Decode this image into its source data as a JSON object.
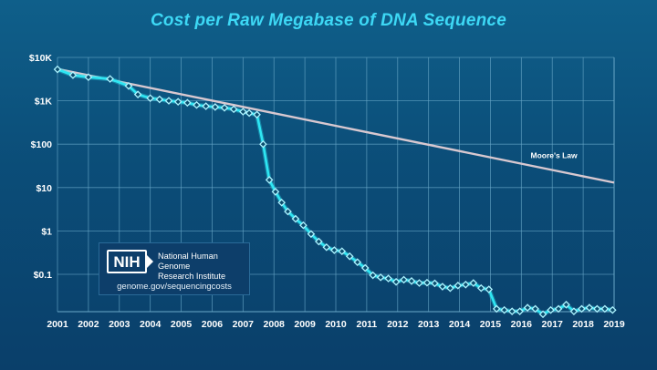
{
  "colors": {
    "title": "#3dd8f5",
    "line": "#2ee6f3",
    "moore": "#d8c8d0",
    "grid": "#6aa8c8",
    "text": "#ffffff"
  },
  "chart_data": {
    "type": "line",
    "title": "Cost per Raw Megabase of DNA Sequence",
    "xlabel": "",
    "ylabel": "",
    "yscale": "log",
    "ylim": [
      0.01,
      10000
    ],
    "xlim": [
      2001,
      2019
    ],
    "x_ticks": [
      "2001",
      "2002",
      "2003",
      "2004",
      "2005",
      "2006",
      "2007",
      "2008",
      "2009",
      "2010",
      "2011",
      "2012",
      "2013",
      "2014",
      "2015",
      "2016",
      "2017",
      "2018",
      "2019"
    ],
    "y_ticks": [
      {
        "value": 10000,
        "label": "$10K"
      },
      {
        "value": 1000,
        "label": "$1K"
      },
      {
        "value": 100,
        "label": "$100"
      },
      {
        "value": 10,
        "label": "$10"
      },
      {
        "value": 1,
        "label": "$1"
      },
      {
        "value": 0.1,
        "label": "$0.1"
      }
    ],
    "series": [
      {
        "name": "Cost per Raw Megabase",
        "x": [
          2001.0,
          2001.5,
          2002.0,
          2002.7,
          2003.3,
          2003.6,
          2004.0,
          2004.3,
          2004.6,
          2004.9,
          2005.2,
          2005.5,
          2005.8,
          2006.1,
          2006.4,
          2006.7,
          2007.0,
          2007.2,
          2007.45,
          2007.65,
          2007.85,
          2008.05,
          2008.25,
          2008.45,
          2008.7,
          2008.95,
          2009.2,
          2009.45,
          2009.7,
          2009.95,
          2010.2,
          2010.45,
          2010.7,
          2010.95,
          2011.2,
          2011.45,
          2011.7,
          2011.95,
          2012.2,
          2012.45,
          2012.7,
          2012.95,
          2013.2,
          2013.45,
          2013.7,
          2013.95,
          2014.2,
          2014.45,
          2014.7,
          2014.95,
          2015.2,
          2015.45,
          2015.7,
          2015.95,
          2016.2,
          2016.45,
          2016.7,
          2016.95,
          2017.2,
          2017.45,
          2017.7,
          2017.95,
          2018.2,
          2018.45,
          2018.7,
          2018.95
        ],
        "values": [
          5300,
          3900,
          3500,
          3200,
          2200,
          1400,
          1150,
          1080,
          1000,
          950,
          900,
          800,
          750,
          720,
          690,
          640,
          560,
          520,
          480,
          100,
          15,
          8,
          4.5,
          2.8,
          1.9,
          1.35,
          0.85,
          0.57,
          0.42,
          0.36,
          0.34,
          0.26,
          0.19,
          0.14,
          0.095,
          0.085,
          0.08,
          0.067,
          0.075,
          0.07,
          0.063,
          0.064,
          0.062,
          0.052,
          0.048,
          0.055,
          0.058,
          0.063,
          0.048,
          0.045,
          0.016,
          0.015,
          0.014,
          0.014,
          0.017,
          0.016,
          0.012,
          0.015,
          0.016,
          0.02,
          0.014,
          0.016,
          0.017,
          0.016,
          0.016,
          0.015
        ]
      },
      {
        "name": "Moore's Law",
        "x": [
          2001,
          2019
        ],
        "values": [
          5400,
          13
        ]
      }
    ],
    "annotations": [
      "Moore's Law"
    ]
  },
  "logo": {
    "mark": "NIH",
    "line1": "National Human Genome",
    "line2": "Research Institute",
    "url": "genome.gov/sequencingcosts"
  }
}
